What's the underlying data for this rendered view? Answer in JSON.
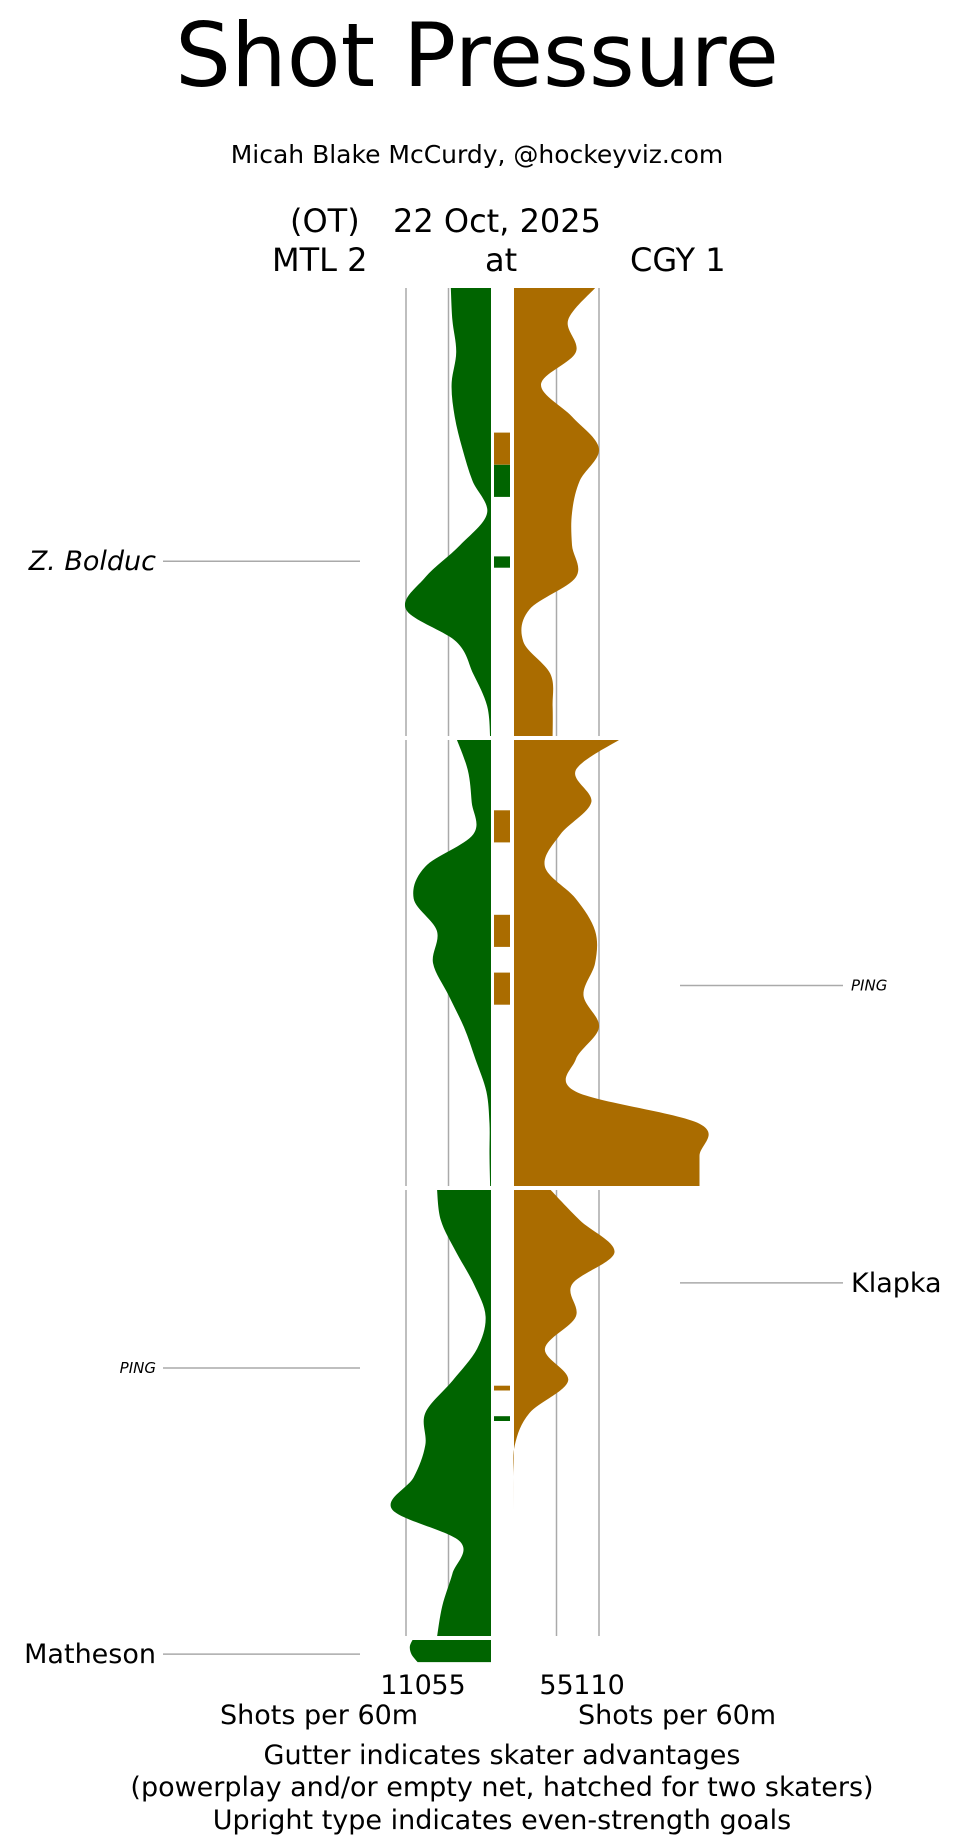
{
  "header": {
    "title": "Shot Pressure",
    "byline": "Micah Blake McCurdy, @hockeyviz.com",
    "ot_label": "(OT)",
    "date": "22 Oct, 2025",
    "away_label": "MTL 2",
    "at_label": "at",
    "home_label": "CGY 1"
  },
  "footer": {
    "xlabel_left": "Shots per 60m",
    "xlabel_right": "Shots per 60m",
    "note_1": "Gutter indicates skater advantages",
    "note_2": "(powerplay and/or empty net, hatched for two skaters)",
    "note_3": "Upright type indicates even-strength goals"
  },
  "colors": {
    "away": "#006400",
    "home": "#AA6C00",
    "gridline": "#aaaaaa"
  },
  "chart_data": {
    "type": "area",
    "title": "Shot Pressure",
    "xlabel": "Shots per 60m",
    "x_ticks_left": [
      "110",
      "55"
    ],
    "x_ticks_right": [
      "55",
      "110"
    ],
    "x_tick_values": [
      55,
      110
    ],
    "x_range": [
      0,
      240
    ],
    "periods": [
      1,
      2,
      3,
      4
    ],
    "grid": true,
    "series": [
      {
        "name": "MTL 2",
        "side": "left",
        "color": "#006400",
        "periods": [
          [
            [
              0,
              52
            ],
            [
              2,
              50
            ],
            [
              4,
              45
            ],
            [
              6,
              51
            ],
            [
              8,
              47
            ],
            [
              10,
              37
            ],
            [
              12,
              24
            ],
            [
              14,
              5
            ],
            [
              16,
              40
            ],
            [
              18,
              85
            ],
            [
              20,
              110
            ],
            [
              22,
              45
            ],
            [
              24,
              23
            ],
            [
              26,
              5
            ],
            [
              28,
              1
            ]
          ],
          [
            [
              0,
              45
            ],
            [
              2,
              30
            ],
            [
              4,
              25
            ],
            [
              6,
              23
            ],
            [
              8,
              85
            ],
            [
              10,
              100
            ],
            [
              12,
              70
            ],
            [
              14,
              75
            ],
            [
              16,
              55
            ],
            [
              18,
              35
            ],
            [
              20,
              20
            ],
            [
              22,
              6
            ],
            [
              24,
              2
            ],
            [
              26,
              2
            ],
            [
              28,
              1
            ]
          ],
          [
            [
              0,
              70
            ],
            [
              2,
              65
            ],
            [
              4,
              45
            ],
            [
              6,
              22
            ],
            [
              8,
              7
            ],
            [
              10,
              18
            ],
            [
              12,
              50
            ],
            [
              14,
              85
            ],
            [
              16,
              85
            ],
            [
              18,
              100
            ],
            [
              20,
              128
            ],
            [
              22,
              40
            ],
            [
              24,
              50
            ],
            [
              26,
              63
            ],
            [
              28,
              70
            ]
          ],
          [
            [
              0,
              100
            ],
            [
              0.5,
              105
            ],
            [
              1,
              103
            ],
            [
              1.5,
              95
            ]
          ]
        ]
      },
      {
        "name": "CGY 1",
        "side": "right",
        "color": "#AA6C00",
        "periods": [
          [
            [
              0,
              105
            ],
            [
              2,
              70
            ],
            [
              4,
              80
            ],
            [
              6,
              35
            ],
            [
              8,
              75
            ],
            [
              10,
              110
            ],
            [
              12,
              85
            ],
            [
              14,
              75
            ],
            [
              16,
              75
            ],
            [
              18,
              80
            ],
            [
              20,
              20
            ],
            [
              22,
              12
            ],
            [
              24,
              47
            ],
            [
              26,
              50
            ],
            [
              28,
              50
            ]
          ],
          [
            [
              0,
              140
            ],
            [
              2,
              80
            ],
            [
              4,
              100
            ],
            [
              6,
              60
            ],
            [
              8,
              40
            ],
            [
              10,
              80
            ],
            [
              12,
              105
            ],
            [
              14,
              105
            ],
            [
              16,
              90
            ],
            [
              18,
              110
            ],
            [
              20,
              80
            ],
            [
              22,
              80
            ],
            [
              24,
              240
            ],
            [
              26,
              240
            ],
            [
              28,
              240
            ]
          ],
          [
            [
              0,
              45
            ],
            [
              2,
              85
            ],
            [
              4,
              130
            ],
            [
              6,
              75
            ],
            [
              8,
              80
            ],
            [
              10,
              40
            ],
            [
              12,
              70
            ],
            [
              14,
              20
            ],
            [
              16,
              1
            ],
            [
              18,
              0
            ],
            [
              20,
              0
            ],
            [
              22,
              0
            ],
            [
              24,
              0
            ],
            [
              26,
              0
            ],
            [
              28,
              0
            ]
          ]
        ]
      }
    ],
    "gutter_advantages": [
      {
        "team": "CGY 1",
        "period": 1,
        "start_min": 9.0,
        "end_min": 11.0
      },
      {
        "team": "MTL 2",
        "period": 1,
        "start_min": 11.0,
        "end_min": 13.0
      },
      {
        "team": "MTL 2",
        "period": 1,
        "start_min": 16.7,
        "end_min": 17.4
      },
      {
        "team": "CGY 1",
        "period": 2,
        "start_min": 4.5,
        "end_min": 6.5
      },
      {
        "team": "CGY 1",
        "period": 2,
        "start_min": 11.0,
        "end_min": 13.0
      },
      {
        "team": "CGY 1",
        "period": 2,
        "start_min": 14.6,
        "end_min": 16.6
      },
      {
        "team": "CGY 1",
        "period": 3,
        "start_min": 12.3,
        "end_min": 12.6
      },
      {
        "team": "MTL 2",
        "period": 3,
        "start_min": 14.2,
        "end_min": 14.5
      }
    ],
    "annotations": [
      {
        "label": "Z. Bolduc",
        "team": "MTL 2",
        "period": 1,
        "minute": 17.0,
        "style": "italic"
      },
      {
        "label": "PING",
        "team": "CGY 1",
        "period": 2,
        "minute": 15.4,
        "style": "italic-small"
      },
      {
        "label": "Klapka",
        "team": "CGY 1",
        "period": 3,
        "minute": 5.9,
        "style": "upright"
      },
      {
        "label": "PING",
        "team": "MTL 2",
        "period": 3,
        "minute": 11.2,
        "style": "italic-small"
      },
      {
        "label": "Matheson",
        "team": "MTL 2",
        "period": 4,
        "minute": 1.0,
        "style": "upright"
      }
    ]
  }
}
